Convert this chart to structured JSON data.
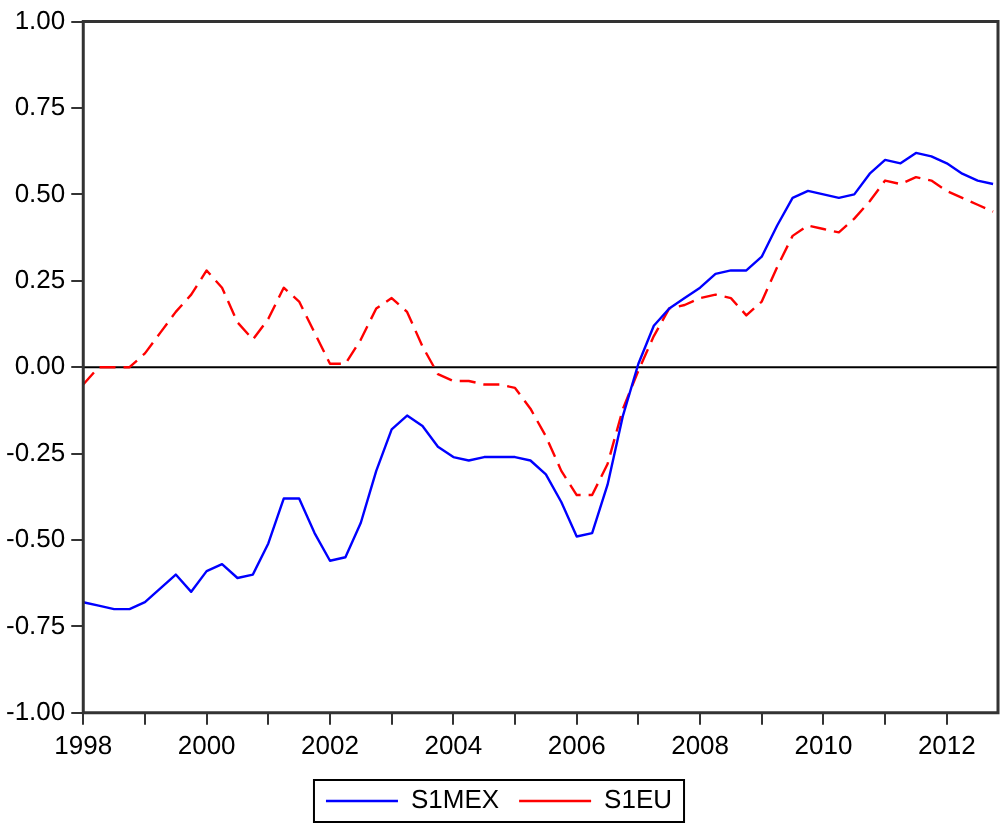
{
  "chart_data": {
    "type": "line",
    "x": [
      1998,
      1998.25,
      1998.5,
      1998.75,
      1999,
      1999.25,
      1999.5,
      1999.75,
      2000,
      2000.25,
      2000.5,
      2000.75,
      2001,
      2001.25,
      2001.5,
      2001.75,
      2002,
      2002.25,
      2002.5,
      2002.75,
      2003,
      2003.25,
      2003.5,
      2003.75,
      2004,
      2004.25,
      2004.5,
      2004.75,
      2005,
      2005.25,
      2005.5,
      2005.75,
      2006,
      2006.25,
      2006.5,
      2006.75,
      2007,
      2007.25,
      2007.5,
      2007.75,
      2008,
      2008.25,
      2008.5,
      2008.75,
      2009,
      2009.25,
      2009.5,
      2009.75,
      2010,
      2010.25,
      2010.5,
      2010.75,
      2011,
      2011.25,
      2011.5,
      2011.75,
      2012,
      2012.25,
      2012.5,
      2012.75
    ],
    "series": [
      {
        "name": "S1MEX",
        "color": "#0000ff",
        "line_style": "solid",
        "values": [
          -0.68,
          -0.69,
          -0.7,
          -0.7,
          -0.68,
          -0.64,
          -0.6,
          -0.65,
          -0.59,
          -0.57,
          -0.61,
          -0.6,
          -0.51,
          -0.38,
          -0.38,
          -0.48,
          -0.56,
          -0.55,
          -0.45,
          -0.3,
          -0.18,
          -0.14,
          -0.17,
          -0.23,
          -0.26,
          -0.27,
          -0.26,
          -0.26,
          -0.26,
          -0.27,
          -0.31,
          -0.39,
          -0.49,
          -0.48,
          -0.34,
          -0.14,
          0.01,
          0.12,
          0.17,
          0.2,
          0.23,
          0.27,
          0.28,
          0.28,
          0.32,
          0.41,
          0.49,
          0.51,
          0.5,
          0.49,
          0.5,
          0.56,
          0.6,
          0.59,
          0.62,
          0.61,
          0.59,
          0.56,
          0.54,
          0.53
        ]
      },
      {
        "name": "S1EU",
        "color": "#ff0000",
        "line_style": "dashed",
        "values": [
          -0.05,
          0,
          0,
          0,
          0.04,
          0.1,
          0.16,
          0.21,
          0.28,
          0.23,
          0.13,
          0.08,
          0.14,
          0.23,
          0.19,
          0.1,
          0.01,
          0.01,
          0.08,
          0.17,
          0.2,
          0.16,
          0.06,
          -0.02,
          -0.04,
          -0.04,
          -0.05,
          -0.05,
          -0.06,
          -0.12,
          -0.2,
          -0.3,
          -0.37,
          -0.37,
          -0.28,
          -0.12,
          -0.01,
          0.09,
          0.17,
          0.18,
          0.2,
          0.21,
          0.2,
          0.15,
          0.19,
          0.29,
          0.38,
          0.41,
          0.4,
          0.39,
          0.43,
          0.48,
          0.54,
          0.53,
          0.55,
          0.54,
          0.51,
          0.49,
          0.47,
          0.45
        ]
      }
    ],
    "xlim": [
      1998,
      2012.83
    ],
    "xticks": [
      1998,
      {
        "value": 1999,
        "label": null
      },
      2000,
      {
        "value": 2001,
        "label": null
      },
      2002,
      {
        "value": 2003,
        "label": null
      },
      2004,
      {
        "value": 2005,
        "label": null
      },
      2006,
      {
        "value": 2007,
        "label": null
      },
      2008,
      {
        "value": 2009,
        "label": null
      },
      2010,
      {
        "value": 2011,
        "label": null
      },
      2012
    ],
    "ylim": [
      -1,
      1
    ],
    "yticks": [
      {
        "value": -1,
        "label": "-1.00"
      },
      {
        "value": -0.75,
        "label": "-0.75"
      },
      {
        "value": -0.5,
        "label": "-0.50"
      },
      {
        "value": -0.25,
        "label": "-0.25"
      },
      {
        "value": 0,
        "label": "0.00"
      },
      {
        "value": 0.25,
        "label": "0.25"
      },
      {
        "value": 0.5,
        "label": "0.50"
      },
      {
        "value": 0.75,
        "label": "0.75"
      },
      {
        "value": 1,
        "label": "1.00"
      }
    ],
    "ref_lines": [
      {
        "axis": "y",
        "value": 0,
        "color": "#000000"
      }
    ],
    "grid": false,
    "legend": "bottom",
    "marker": "none"
  }
}
